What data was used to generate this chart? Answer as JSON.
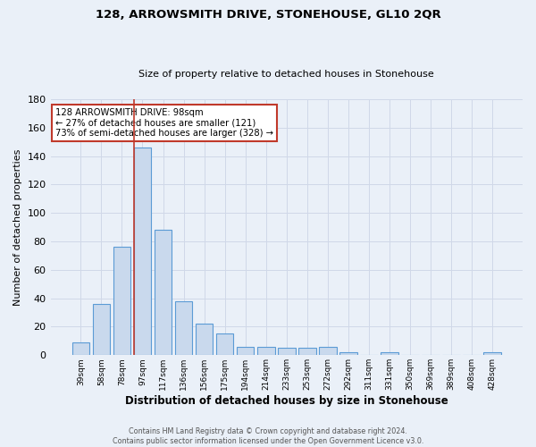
{
  "title": "128, ARROWSMITH DRIVE, STONEHOUSE, GL10 2QR",
  "subtitle": "Size of property relative to detached houses in Stonehouse",
  "xlabel": "Distribution of detached houses by size in Stonehouse",
  "ylabel": "Number of detached properties",
  "bar_labels": [
    "39sqm",
    "58sqm",
    "78sqm",
    "97sqm",
    "117sqm",
    "136sqm",
    "156sqm",
    "175sqm",
    "194sqm",
    "214sqm",
    "233sqm",
    "253sqm",
    "272sqm",
    "292sqm",
    "311sqm",
    "331sqm",
    "350sqm",
    "369sqm",
    "389sqm",
    "408sqm",
    "428sqm"
  ],
  "bar_values": [
    9,
    36,
    76,
    146,
    88,
    38,
    22,
    15,
    6,
    6,
    5,
    5,
    6,
    2,
    0,
    2,
    0,
    0,
    0,
    0,
    2
  ],
  "bar_color": "#c9d9ed",
  "bar_edge_color": "#5b9bd5",
  "property_bin_index": 3,
  "red_line_color": "#c0392b",
  "annotation_line1": "128 ARROWSMITH DRIVE: 98sqm",
  "annotation_line2": "← 27% of detached houses are smaller (121)",
  "annotation_line3": "73% of semi-detached houses are larger (328) →",
  "annotation_box_color": "#ffffff",
  "annotation_box_edge": "#c0392b",
  "ylim": [
    0,
    180
  ],
  "yticks": [
    0,
    20,
    40,
    60,
    80,
    100,
    120,
    140,
    160,
    180
  ],
  "grid_color": "#d0d8e8",
  "bg_color": "#eaf0f8",
  "footer_line1": "Contains HM Land Registry data © Crown copyright and database right 2024.",
  "footer_line2": "Contains public sector information licensed under the Open Government Licence v3.0."
}
